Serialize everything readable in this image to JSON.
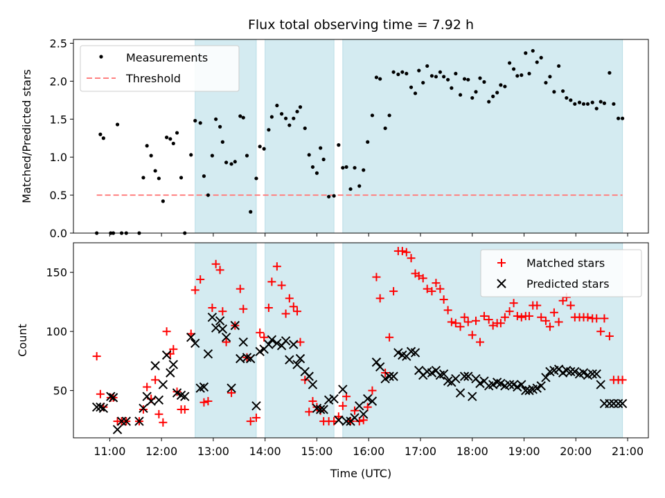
{
  "chart_data": [
    {
      "type": "scatter",
      "title": "Flux total observing time = 7.92 h",
      "xlabel": "",
      "ylabel": "Matched/Predicted stars",
      "xlim": [
        10.3,
        21.4
      ],
      "ylim": [
        0,
        2.55
      ],
      "yticks": [
        0.0,
        0.5,
        1.0,
        1.5,
        2.0,
        2.5
      ],
      "ytick_labels": [
        "0.0",
        "0.5",
        "1.0",
        "1.5",
        "2.0",
        "2.5"
      ],
      "legend_position": "top-left",
      "colors": {
        "measurements": "#000000",
        "threshold": "#ff7f7f",
        "shade": "#d4ebf1"
      },
      "shaded_intervals": [
        [
          12.65,
          13.83
        ],
        [
          14.0,
          15.33
        ],
        [
          15.5,
          20.9
        ]
      ],
      "threshold": {
        "name": "Threshold",
        "value": 0.5,
        "x_range": [
          10.75,
          20.9
        ]
      },
      "series": [
        {
          "name": "Measurements",
          "x": [
            10.75,
            10.82,
            10.88,
            11.02,
            11.07,
            11.15,
            11.23,
            11.32,
            11.57,
            11.65,
            11.72,
            11.8,
            11.88,
            11.95,
            12.03,
            12.1,
            12.17,
            12.23,
            12.3,
            12.38,
            12.45,
            12.57,
            12.65,
            12.75,
            12.82,
            12.9,
            12.98,
            13.05,
            13.13,
            13.18,
            13.25,
            13.35,
            13.42,
            13.52,
            13.58,
            13.65,
            13.72,
            13.83,
            13.9,
            13.98,
            14.07,
            14.13,
            14.23,
            14.32,
            14.4,
            14.47,
            14.55,
            14.62,
            14.68,
            14.77,
            14.85,
            14.92,
            15.0,
            15.07,
            15.13,
            15.23,
            15.33,
            15.42,
            15.5,
            15.57,
            15.65,
            15.73,
            15.82,
            15.9,
            15.98,
            16.07,
            16.15,
            16.22,
            16.32,
            16.4,
            16.48,
            16.57,
            16.65,
            16.73,
            16.82,
            16.9,
            16.97,
            17.05,
            17.13,
            17.22,
            17.3,
            17.38,
            17.45,
            17.53,
            17.6,
            17.68,
            17.77,
            17.85,
            17.92,
            18.0,
            18.07,
            18.15,
            18.23,
            18.32,
            18.4,
            18.48,
            18.55,
            18.63,
            18.72,
            18.8,
            18.87,
            18.95,
            19.03,
            19.1,
            19.17,
            19.25,
            19.33,
            19.42,
            19.5,
            19.58,
            19.67,
            19.75,
            19.82,
            19.9,
            19.98,
            20.07,
            20.15,
            20.23,
            20.32,
            20.4,
            20.48,
            20.55,
            20.65,
            20.73,
            20.82,
            20.9
          ],
          "y": [
            0.0,
            1.3,
            1.25,
            0.0,
            0.0,
            1.43,
            0.0,
            0.0,
            0.0,
            0.73,
            1.15,
            1.02,
            0.82,
            0.72,
            0.42,
            1.26,
            1.24,
            1.18,
            1.32,
            0.73,
            0.0,
            1.03,
            1.48,
            1.45,
            0.75,
            0.5,
            1.02,
            1.5,
            1.4,
            1.2,
            0.93,
            0.91,
            0.94,
            1.54,
            1.52,
            1.02,
            0.28,
            0.72,
            1.14,
            1.11,
            1.36,
            1.53,
            1.68,
            1.57,
            1.51,
            1.42,
            1.51,
            1.6,
            1.66,
            1.38,
            1.03,
            0.87,
            0.79,
            1.12,
            0.97,
            0.48,
            0.49,
            1.16,
            0.86,
            0.87,
            0.58,
            0.86,
            0.62,
            0.83,
            1.2,
            1.55,
            2.05,
            2.03,
            1.38,
            1.55,
            2.12,
            2.09,
            2.12,
            2.1,
            1.92,
            1.84,
            2.14,
            1.98,
            2.2,
            2.07,
            2.06,
            2.12,
            2.06,
            2.02,
            1.91,
            2.1,
            1.82,
            2.03,
            2.02,
            1.78,
            1.86,
            2.04,
            1.99,
            1.73,
            1.8,
            1.85,
            1.95,
            1.93,
            2.24,
            2.16,
            2.07,
            2.08,
            2.37,
            2.1,
            2.4,
            2.25,
            2.31,
            1.98,
            2.06,
            1.86,
            2.2,
            1.87,
            1.78,
            1.75,
            1.7,
            1.72,
            1.7,
            1.7,
            1.72,
            1.64,
            1.73,
            1.71,
            2.11,
            1.7,
            1.51,
            1.51
          ]
        }
      ]
    },
    {
      "type": "scatter",
      "title": "",
      "xlabel": "Time (UTC)",
      "ylabel": "Count",
      "xlim": [
        10.3,
        21.4
      ],
      "ylim": [
        10,
        175
      ],
      "xticks": [
        11,
        12,
        13,
        14,
        15,
        16,
        17,
        18,
        19,
        20,
        21
      ],
      "xtick_labels": [
        "11:00",
        "12:00",
        "13:00",
        "14:00",
        "15:00",
        "16:00",
        "17:00",
        "18:00",
        "19:00",
        "20:00",
        "21:00"
      ],
      "yticks": [
        50,
        100,
        150
      ],
      "ytick_labels": [
        "50",
        "100",
        "150"
      ],
      "legend_position": "top-right",
      "colors": {
        "matched": "#ff0000",
        "predicted": "#000000"
      },
      "shaded_intervals": [
        [
          12.65,
          13.83
        ],
        [
          14.0,
          15.33
        ],
        [
          15.5,
          20.9
        ]
      ],
      "series": [
        {
          "name": "Matched stars",
          "marker": "plus",
          "x": [
            10.75,
            10.82,
            10.88,
            11.02,
            11.07,
            11.15,
            11.23,
            11.32,
            11.57,
            11.65,
            11.72,
            11.8,
            11.88,
            11.95,
            12.03,
            12.1,
            12.17,
            12.23,
            12.3,
            12.38,
            12.45,
            12.57,
            12.65,
            12.75,
            12.82,
            12.9,
            12.98,
            13.05,
            13.13,
            13.18,
            13.25,
            13.35,
            13.42,
            13.52,
            13.58,
            13.65,
            13.72,
            13.83,
            13.9,
            13.98,
            14.07,
            14.13,
            14.23,
            14.32,
            14.4,
            14.47,
            14.55,
            14.62,
            14.68,
            14.77,
            14.85,
            14.92,
            15.0,
            15.07,
            15.13,
            15.23,
            15.33,
            15.42,
            15.5,
            15.57,
            15.65,
            15.73,
            15.82,
            15.9,
            15.98,
            16.07,
            16.15,
            16.22,
            16.32,
            16.4,
            16.48,
            16.57,
            16.65,
            16.73,
            16.82,
            16.9,
            16.97,
            17.05,
            17.13,
            17.22,
            17.3,
            17.38,
            17.45,
            17.53,
            17.6,
            17.68,
            17.77,
            17.85,
            17.92,
            18.0,
            18.07,
            18.15,
            18.23,
            18.32,
            18.4,
            18.48,
            18.55,
            18.63,
            18.72,
            18.8,
            18.87,
            18.95,
            19.03,
            19.1,
            19.17,
            19.25,
            19.33,
            19.42,
            19.5,
            19.58,
            19.67,
            19.75,
            19.82,
            19.9,
            19.98,
            20.07,
            20.15,
            20.23,
            20.32,
            20.4,
            20.48,
            20.55,
            20.65,
            20.73,
            20.82,
            20.9
          ],
          "y": [
            79,
            47,
            36,
            44,
            44,
            24,
            24,
            24,
            24,
            34,
            53,
            43,
            59,
            30,
            23,
            100,
            81,
            85,
            49,
            34,
            34,
            98,
            135,
            144,
            40,
            41,
            120,
            157,
            152,
            117,
            91,
            48,
            105,
            136,
            119,
            78,
            24,
            27,
            99,
            95,
            120,
            142,
            155,
            139,
            115,
            128,
            121,
            117,
            91,
            59,
            32,
            41,
            36,
            33,
            24,
            24,
            24,
            28,
            37,
            45,
            24,
            33,
            24,
            25,
            36,
            50,
            146,
            128,
            65,
            95,
            134,
            168,
            168,
            167,
            162,
            149,
            147,
            145,
            136,
            134,
            141,
            136,
            127,
            118,
            108,
            107,
            104,
            112,
            108,
            97,
            109,
            91,
            113,
            110,
            105,
            107,
            107,
            112,
            117,
            124,
            113,
            112,
            113,
            113,
            122,
            122,
            112,
            109,
            104,
            116,
            108,
            126,
            129,
            122,
            112,
            112,
            112,
            112,
            111,
            111,
            100,
            111,
            96,
            59,
            59,
            59
          ]
        },
        {
          "name": "Predicted stars",
          "marker": "x",
          "x": [
            10.75,
            10.82,
            10.88,
            11.02,
            11.07,
            11.15,
            11.23,
            11.32,
            11.57,
            11.65,
            11.72,
            11.8,
            11.88,
            11.95,
            12.03,
            12.1,
            12.17,
            12.23,
            12.3,
            12.38,
            12.45,
            12.57,
            12.65,
            12.75,
            12.82,
            12.9,
            12.98,
            13.05,
            13.13,
            13.18,
            13.25,
            13.35,
            13.42,
            13.52,
            13.58,
            13.65,
            13.72,
            13.83,
            13.9,
            13.98,
            14.07,
            14.13,
            14.23,
            14.32,
            14.4,
            14.47,
            14.55,
            14.62,
            14.68,
            14.77,
            14.85,
            14.92,
            15.0,
            15.07,
            15.13,
            15.23,
            15.33,
            15.42,
            15.5,
            15.57,
            15.65,
            15.73,
            15.82,
            15.9,
            15.98,
            16.07,
            16.15,
            16.22,
            16.32,
            16.4,
            16.48,
            16.57,
            16.65,
            16.73,
            16.82,
            16.9,
            16.97,
            17.05,
            17.13,
            17.22,
            17.3,
            17.38,
            17.45,
            17.53,
            17.6,
            17.68,
            17.77,
            17.85,
            17.92,
            18.0,
            18.07,
            18.15,
            18.23,
            18.32,
            18.4,
            18.48,
            18.55,
            18.63,
            18.72,
            18.8,
            18.87,
            18.95,
            19.03,
            19.1,
            19.17,
            19.25,
            19.33,
            19.42,
            19.5,
            19.58,
            19.67,
            19.75,
            19.82,
            19.9,
            19.98,
            20.07,
            20.15,
            20.23,
            20.32,
            20.4,
            20.48,
            20.55,
            20.65,
            20.73,
            20.82,
            20.9
          ],
          "y": [
            36,
            36,
            35,
            45,
            44,
            17,
            24,
            24,
            24,
            35,
            45,
            41,
            71,
            42,
            55,
            80,
            65,
            72,
            48,
            46,
            45,
            95,
            90,
            52,
            53,
            81,
            112,
            103,
            109,
            102,
            95,
            52,
            105,
            77,
            91,
            78,
            77,
            37,
            83,
            85,
            89,
            93,
            90,
            88,
            92,
            76,
            89,
            72,
            77,
            66,
            62,
            55,
            35,
            34,
            34,
            42,
            43,
            25,
            51,
            24,
            24,
            27,
            37,
            30,
            43,
            41,
            74,
            70,
            60,
            62,
            62,
            82,
            80,
            79,
            83,
            82,
            67,
            63,
            66,
            65,
            67,
            63,
            64,
            58,
            57,
            60,
            48,
            62,
            62,
            45,
            60,
            56,
            58,
            54,
            55,
            57,
            56,
            54,
            55,
            55,
            53,
            55,
            50,
            50,
            51,
            52,
            54,
            61,
            66,
            67,
            68,
            65,
            67,
            66,
            66,
            64,
            65,
            63,
            64,
            64,
            55,
            39,
            39,
            39,
            39,
            39
          ]
        }
      ]
    }
  ]
}
